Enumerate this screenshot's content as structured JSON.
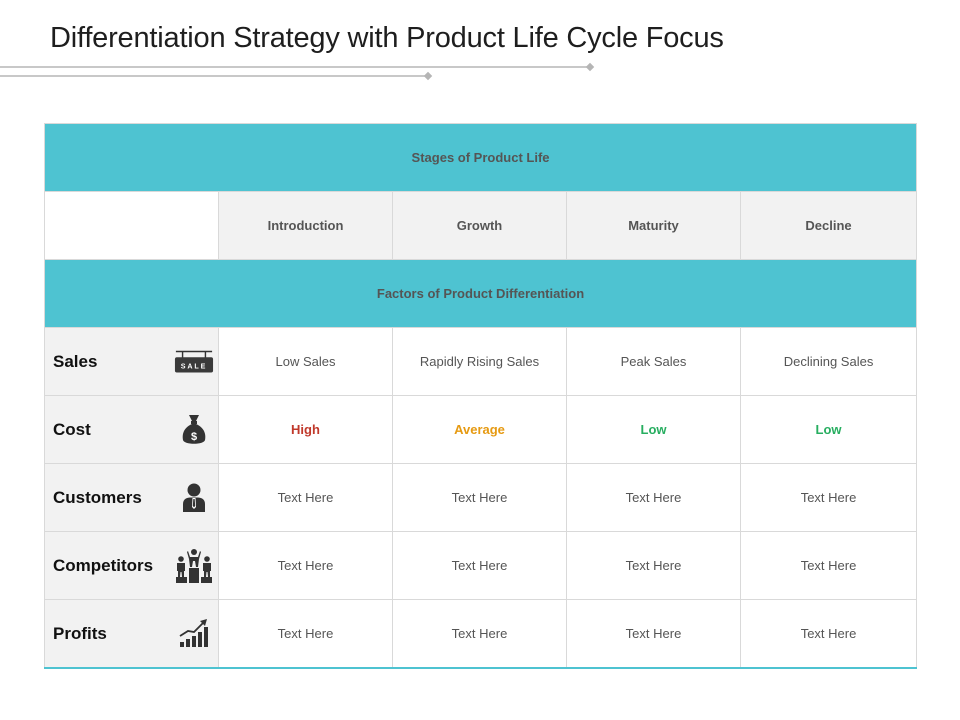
{
  "title": "Differentiation Strategy with Product Life Cycle Focus",
  "colors": {
    "accent": "#4ec3d1",
    "high": "#c0392b",
    "average": "#e69a12",
    "low": "#27ae60"
  },
  "table": {
    "stages_header": "Stages of Product Life",
    "stages": [
      "Introduction",
      "Growth",
      "Maturity",
      "Decline"
    ],
    "factors_header": "Factors of Product Differentiation",
    "rows": [
      {
        "label": "Sales",
        "icon": "sale-sign-icon",
        "values": [
          "Low Sales",
          "Rapidly Rising Sales",
          "Peak Sales",
          "Declining Sales"
        ]
      },
      {
        "label": "Cost",
        "icon": "money-bag-icon",
        "values": [
          "High",
          "Average",
          "Low",
          "Low"
        ]
      },
      {
        "label": "Customers",
        "icon": "person-icon",
        "values": [
          "Text Here",
          "Text Here",
          "Text Here",
          "Text Here"
        ]
      },
      {
        "label": "Competitors",
        "icon": "podium-people-icon",
        "values": [
          "Text Here",
          "Text Here",
          "Text Here",
          "Text Here"
        ]
      },
      {
        "label": "Profits",
        "icon": "growth-chart-icon",
        "values": [
          "Text Here",
          "Text Here",
          "Text Here",
          "Text Here"
        ]
      }
    ],
    "sale_sign_text": "SALE",
    "money_bag_symbol": "$"
  }
}
